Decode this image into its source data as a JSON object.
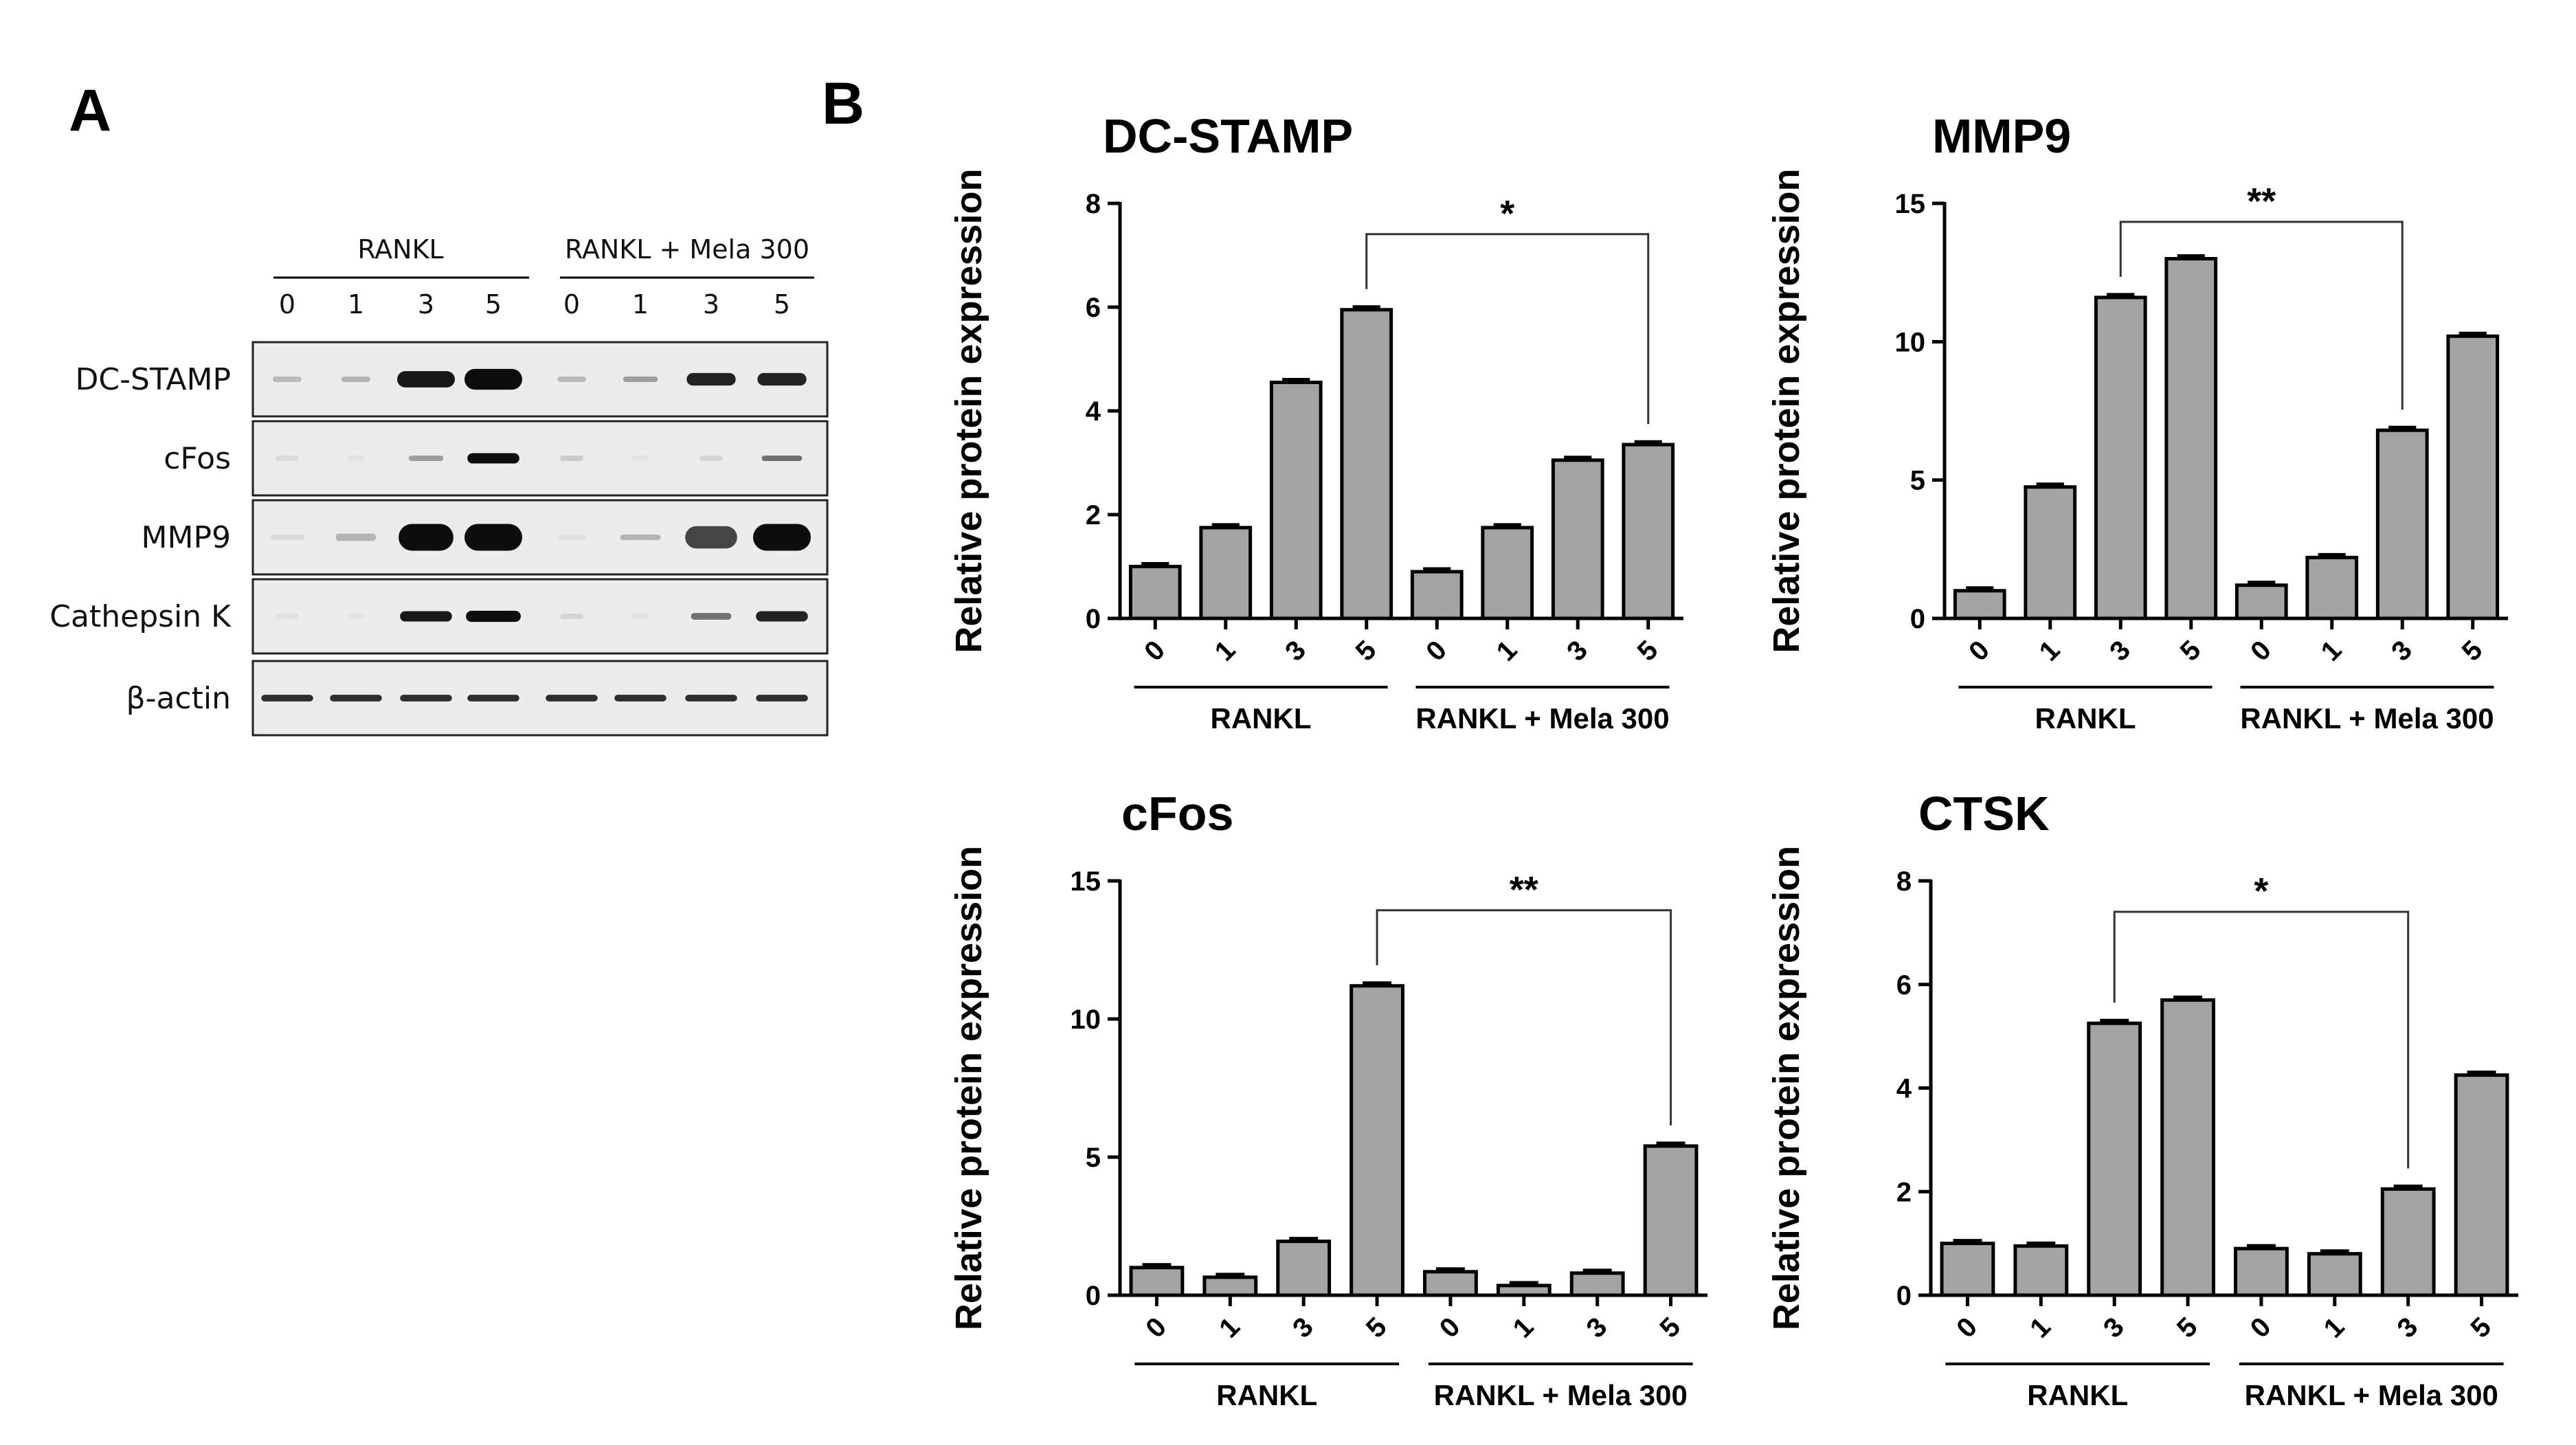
{
  "panels": {
    "a": "A",
    "b": "B"
  },
  "western_blot": {
    "group_labels": [
      "RANKL",
      "RANKL + Mela 300"
    ],
    "lanes": [
      "0",
      "1",
      "3",
      "5",
      "0",
      "1",
      "3",
      "5"
    ],
    "rows": [
      "DC-STAMP",
      "cFos",
      "MMP9",
      "Cathepsin K",
      "β-actin"
    ]
  },
  "colors": {
    "bar": "#a3a3a3",
    "axis": "#000000",
    "band": "#0d0d0d"
  },
  "chart_data": [
    {
      "type": "bar",
      "title": "DC-STAMP",
      "ylabel": "Relative protein expression",
      "xlabel": "",
      "categories": [
        "0",
        "1",
        "3",
        "5",
        "0",
        "1",
        "3",
        "5"
      ],
      "groups": [
        "RANKL",
        "RANKL + Mela 300"
      ],
      "values": [
        1.0,
        1.75,
        4.55,
        5.95,
        0.9,
        1.75,
        3.05,
        3.35
      ],
      "ylim": [
        0,
        8
      ],
      "yticks": [
        "0",
        "2",
        "4",
        "6",
        "8"
      ],
      "significance": {
        "label": "*",
        "from": 3,
        "to": 7
      }
    },
    {
      "type": "bar",
      "title": "MMP9",
      "ylabel": "Relative protein expression",
      "xlabel": "",
      "categories": [
        "0",
        "1",
        "3",
        "5",
        "0",
        "1",
        "3",
        "5"
      ],
      "groups": [
        "RANKL",
        "RANKL + Mela 300"
      ],
      "values": [
        1.0,
        4.75,
        11.6,
        13.0,
        1.2,
        2.2,
        6.8,
        10.2
      ],
      "ylim": [
        0,
        15
      ],
      "yticks": [
        "0",
        "5",
        "10",
        "15"
      ],
      "significance": {
        "label": "**",
        "from": 2,
        "to": 6
      }
    },
    {
      "type": "bar",
      "title": "cFos",
      "ylabel": "Relative protein expression",
      "xlabel": "",
      "categories": [
        "0",
        "1",
        "3",
        "5",
        "0",
        "1",
        "3",
        "5"
      ],
      "groups": [
        "RANKL",
        "RANKL + Mela 300"
      ],
      "values": [
        1.0,
        0.65,
        1.95,
        11.2,
        0.85,
        0.35,
        0.8,
        5.4
      ],
      "ylim": [
        0,
        15
      ],
      "yticks": [
        "0",
        "5",
        "10",
        "15"
      ],
      "significance": {
        "label": "**",
        "from": 3,
        "to": 7
      }
    },
    {
      "type": "bar",
      "title": "CTSK",
      "ylabel": "Relative protein expression",
      "xlabel": "",
      "categories": [
        "0",
        "1",
        "3",
        "5",
        "0",
        "1",
        "3",
        "5"
      ],
      "groups": [
        "RANKL",
        "RANKL + Mela 300"
      ],
      "values": [
        1.0,
        0.95,
        5.25,
        5.7,
        0.9,
        0.8,
        2.05,
        4.25
      ],
      "ylim": [
        0,
        8
      ],
      "yticks": [
        "0",
        "2",
        "4",
        "6",
        "8"
      ],
      "significance": {
        "label": "*",
        "from": 2,
        "to": 6
      }
    }
  ]
}
